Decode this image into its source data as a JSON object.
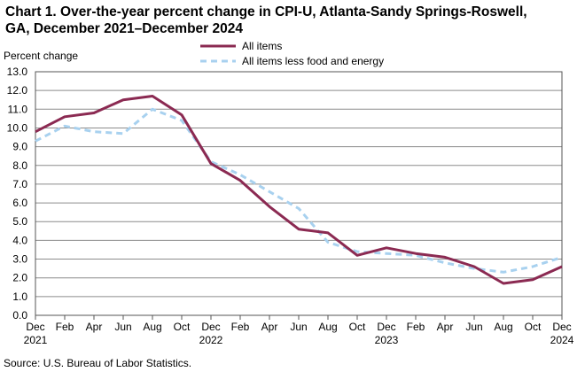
{
  "title_line1": "Chart 1. Over-the-year percent change in CPI-U, Atlanta-Sandy Springs-Roswell,",
  "title_line2": "GA, December 2021–December  2024",
  "source": "Source: U.S. Bureau  of Labor Statistics.",
  "colors": {
    "all_items": "#8b2a52",
    "core": "#a8d1ef",
    "grid": "#8c8c8c"
  },
  "chart_data": {
    "type": "line",
    "ylabel": "Percent change",
    "ylim": [
      0,
      13
    ],
    "yticks": [
      "0.0",
      "1.0",
      "2.0",
      "3.0",
      "4.0",
      "5.0",
      "6.0",
      "7.0",
      "8.0",
      "9.0",
      "10.0",
      "11.0",
      "12.0",
      "13.0"
    ],
    "xticks": [
      {
        "month": "Dec",
        "year": "2021"
      },
      {
        "month": "Feb",
        "year": ""
      },
      {
        "month": "Apr",
        "year": ""
      },
      {
        "month": "Jun",
        "year": ""
      },
      {
        "month": "Aug",
        "year": ""
      },
      {
        "month": "Oct",
        "year": ""
      },
      {
        "month": "Dec",
        "year": "2022"
      },
      {
        "month": "Feb",
        "year": ""
      },
      {
        "month": "Apr",
        "year": ""
      },
      {
        "month": "Jun",
        "year": ""
      },
      {
        "month": "Aug",
        "year": ""
      },
      {
        "month": "Oct",
        "year": ""
      },
      {
        "month": "Dec",
        "year": "2023"
      },
      {
        "month": "Feb",
        "year": ""
      },
      {
        "month": "Apr",
        "year": ""
      },
      {
        "month": "Jun",
        "year": ""
      },
      {
        "month": "Aug",
        "year": ""
      },
      {
        "month": "Oct",
        "year": ""
      },
      {
        "month": "Dec",
        "year": "2024"
      }
    ],
    "series": [
      {
        "name": "All items",
        "style": "solid",
        "values": [
          9.8,
          10.6,
          10.8,
          11.5,
          11.7,
          10.7,
          8.1,
          7.2,
          5.8,
          4.6,
          4.4,
          3.2,
          3.6,
          3.3,
          3.1,
          2.6,
          1.7,
          1.9,
          2.6
        ]
      },
      {
        "name": "All items less food and energy",
        "style": "dashed",
        "values": [
          9.3,
          10.1,
          9.8,
          9.7,
          11.0,
          10.4,
          8.2,
          7.5,
          6.6,
          5.7,
          3.9,
          3.4,
          3.3,
          3.2,
          2.8,
          2.5,
          2.3,
          2.6,
          3.1
        ]
      }
    ]
  }
}
